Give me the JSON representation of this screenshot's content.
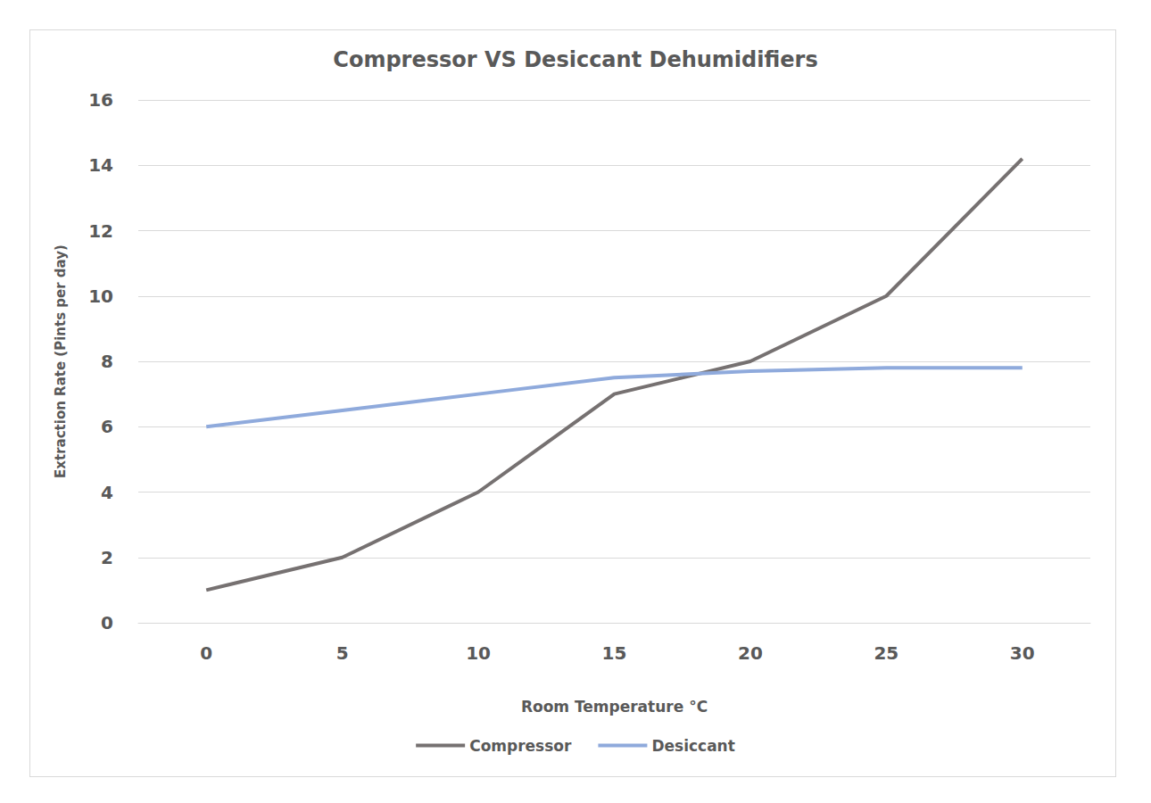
{
  "chart_data": {
    "type": "line",
    "title": "Compressor VS Desiccant Dehumidifiers",
    "x_label": "Room Temperature °C",
    "y_label": "Extraction Rate (Pints per day)",
    "categories": [
      "0",
      "5",
      "10",
      "15",
      "20",
      "25",
      "30"
    ],
    "series": [
      {
        "name": "Compressor",
        "color": "#767171",
        "values": [
          1,
          2,
          4,
          7,
          8,
          10,
          14.2
        ]
      },
      {
        "name": "Desiccant",
        "color": "#8faadc",
        "values": [
          6,
          6.5,
          7,
          7.5,
          7.7,
          7.8,
          7.8
        ]
      }
    ],
    "ylim": [
      0,
      16
    ],
    "yticks": [
      0,
      2,
      4,
      6,
      8,
      10,
      12,
      14,
      16
    ],
    "grid": true,
    "legend": "bottom"
  }
}
